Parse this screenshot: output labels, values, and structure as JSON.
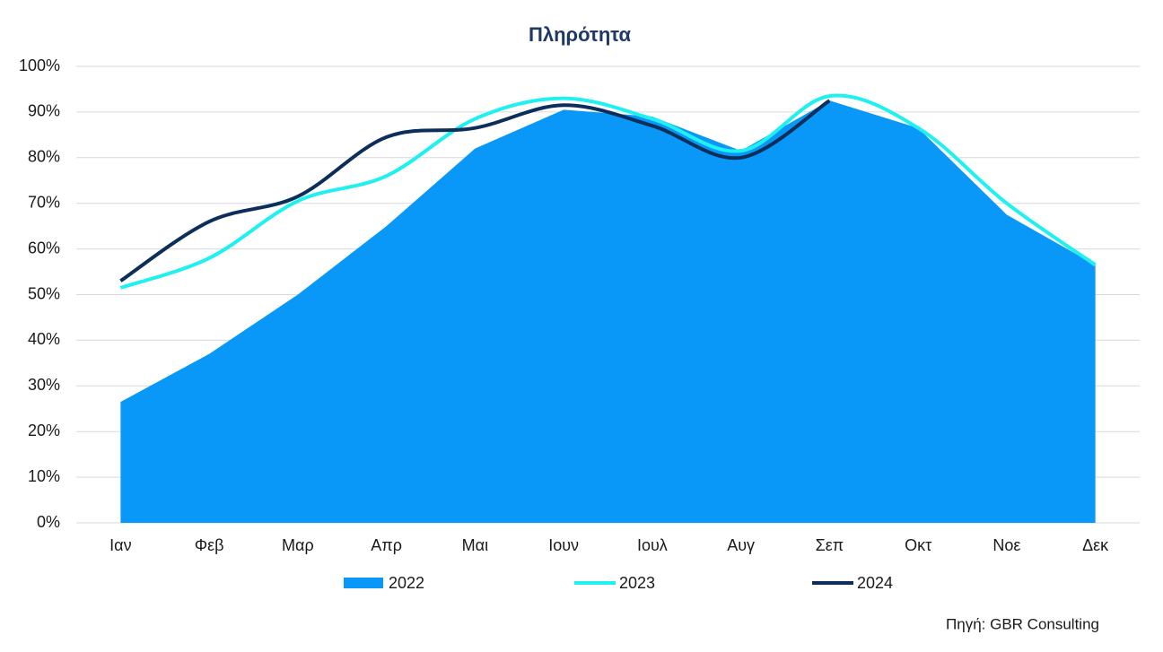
{
  "chart_data": {
    "type": "area_line",
    "title": "Πληρότητα",
    "source": "Πηγή: GBR Consulting",
    "categories": [
      "Ιαν",
      "Φεβ",
      "Μαρ",
      "Απρ",
      "Μαι",
      "Ιουν",
      "Ιουλ",
      "Αυγ",
      "Σεπ",
      "Οκτ",
      "Νοε",
      "Δεκ"
    ],
    "series": [
      {
        "name": "2022",
        "color": "#0a98f8",
        "kind": "area",
        "values": [
          26.5,
          37,
          50,
          65,
          82,
          90.5,
          89,
          81.5,
          92.5,
          86.5,
          67.5,
          56.5
        ]
      },
      {
        "name": "2023",
        "color": "#1ff0f0",
        "kind": "line",
        "values": [
          51.5,
          58,
          70.5,
          76,
          88.5,
          93,
          88.5,
          81.5,
          93.5,
          86.5,
          70,
          56.5
        ]
      },
      {
        "name": "2024",
        "color": "#0b2f5a",
        "kind": "line",
        "values": [
          53,
          66,
          71.5,
          84.5,
          86.5,
          91.5,
          87,
          80,
          92.5,
          null,
          null,
          null
        ]
      }
    ],
    "ylim": [
      0,
      100
    ],
    "yticks": [
      {
        "value": 0,
        "label": "0%"
      },
      {
        "value": 10,
        "label": "10%"
      },
      {
        "value": 20,
        "label": "20%"
      },
      {
        "value": 30,
        "label": "30%"
      },
      {
        "value": 40,
        "label": "40%"
      },
      {
        "value": 50,
        "label": "50%"
      },
      {
        "value": 60,
        "label": "60%"
      },
      {
        "value": 70,
        "label": "70%"
      },
      {
        "value": 80,
        "label": "80%"
      },
      {
        "value": 90,
        "label": "90%"
      },
      {
        "value": 100,
        "label": "100%"
      }
    ],
    "grid": true
  }
}
